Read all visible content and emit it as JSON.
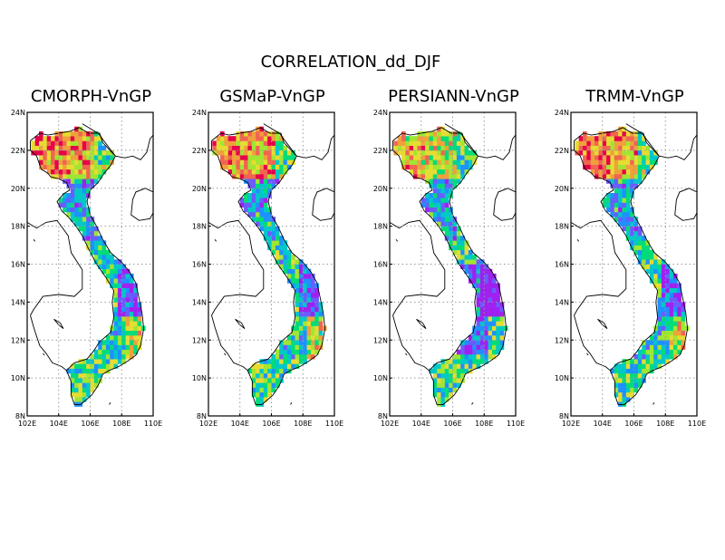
{
  "figure": {
    "title": "CORRELATION_dd_DJF"
  },
  "axes": {
    "lon_ticks": [
      "102E",
      "104E",
      "106E",
      "108E",
      "110E"
    ],
    "lat_ticks": [
      "8N",
      "10N",
      "12N",
      "14N",
      "16N",
      "18N",
      "20N",
      "22N",
      "24N"
    ],
    "lon_range": [
      102,
      110
    ],
    "lat_range": [
      8,
      24
    ],
    "grid": "dotted"
  },
  "panels": [
    {
      "title": "CMORPH-VnGP"
    },
    {
      "title": "GSMaP-VnGP"
    },
    {
      "title": "PERSIANN-VnGP"
    },
    {
      "title": "TRMM-VnGP"
    }
  ],
  "colors": {
    "palette": [
      "#a020f0",
      "#6a5cff",
      "#1e90ff",
      "#00c8c8",
      "#00dc78",
      "#a0e632",
      "#e6dc32",
      "#f0a03c",
      "#f06450",
      "#e6004a"
    ],
    "coast": "#000000",
    "grid": "#999999"
  }
}
